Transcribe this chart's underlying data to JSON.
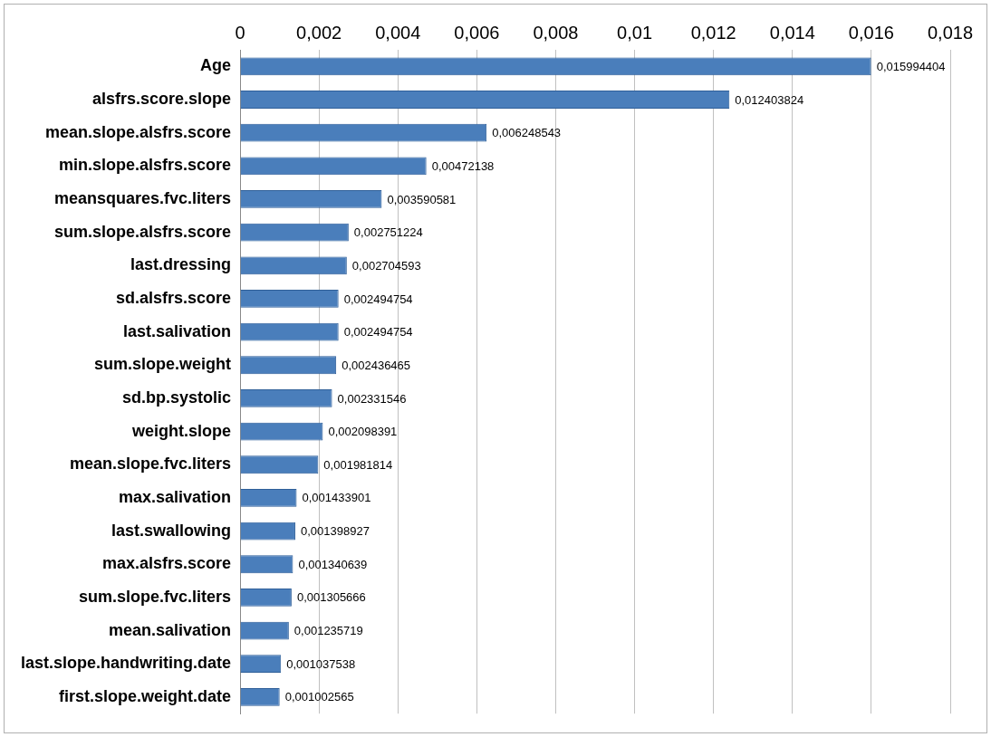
{
  "chart_data": {
    "type": "bar",
    "orientation": "horizontal",
    "grid": "x",
    "legend": false,
    "categories": [
      "Age",
      "alsfrs.score.slope",
      "mean.slope.alsfrs.score",
      "min.slope.alsfrs.score",
      "meansquares.fvc.liters",
      "sum.slope.alsfrs.score",
      "last.dressing",
      "sd.alsfrs.score",
      "last.salivation",
      "sum.slope.weight",
      "sd.bp.systolic",
      "weight.slope",
      "mean.slope.fvc.liters",
      "max.salivation",
      "last.swallowing",
      "max.alsfrs.score",
      "sum.slope.fvc.liters",
      "mean.salivation",
      "last.slope.handwriting.date",
      "first.slope.weight.date"
    ],
    "values": [
      0.015994404,
      0.012403824,
      0.006248543,
      0.00472138,
      0.003590581,
      0.002751224,
      0.002704593,
      0.002494754,
      0.002494754,
      0.002436465,
      0.002331546,
      0.002098391,
      0.001981814,
      0.001433901,
      0.001398927,
      0.001340639,
      0.001305666,
      0.001235719,
      0.001037538,
      0.001002565
    ],
    "value_labels": [
      "0,015994404",
      "0,012403824",
      "0,006248543",
      "0,00472138",
      "0,003590581",
      "0,002751224",
      "0,002704593",
      "0,002494754",
      "0,002494754",
      "0,002436465",
      "0,002331546",
      "0,002098391",
      "0,001981814",
      "0,001433901",
      "0,001398927",
      "0,001340639",
      "0,001305666",
      "0,001235719",
      "0,001037538",
      "0,001002565"
    ],
    "color": "#4a7ebb",
    "xlim": [
      0,
      0.018
    ],
    "xticks": [
      0,
      {
        "value": 0.002,
        "label": "0,002"
      },
      {
        "value": 0.004,
        "label": "0,004"
      },
      {
        "value": 0.006,
        "label": "0,006"
      },
      {
        "value": 0.008,
        "label": "0,008"
      },
      {
        "value": 0.01,
        "label": "0,01"
      },
      {
        "value": 0.012,
        "label": "0,012"
      },
      {
        "value": 0.014,
        "label": "0,014"
      },
      {
        "value": 0.016,
        "label": "0,016"
      },
      {
        "value": 0.018,
        "label": "0,018"
      }
    ]
  }
}
